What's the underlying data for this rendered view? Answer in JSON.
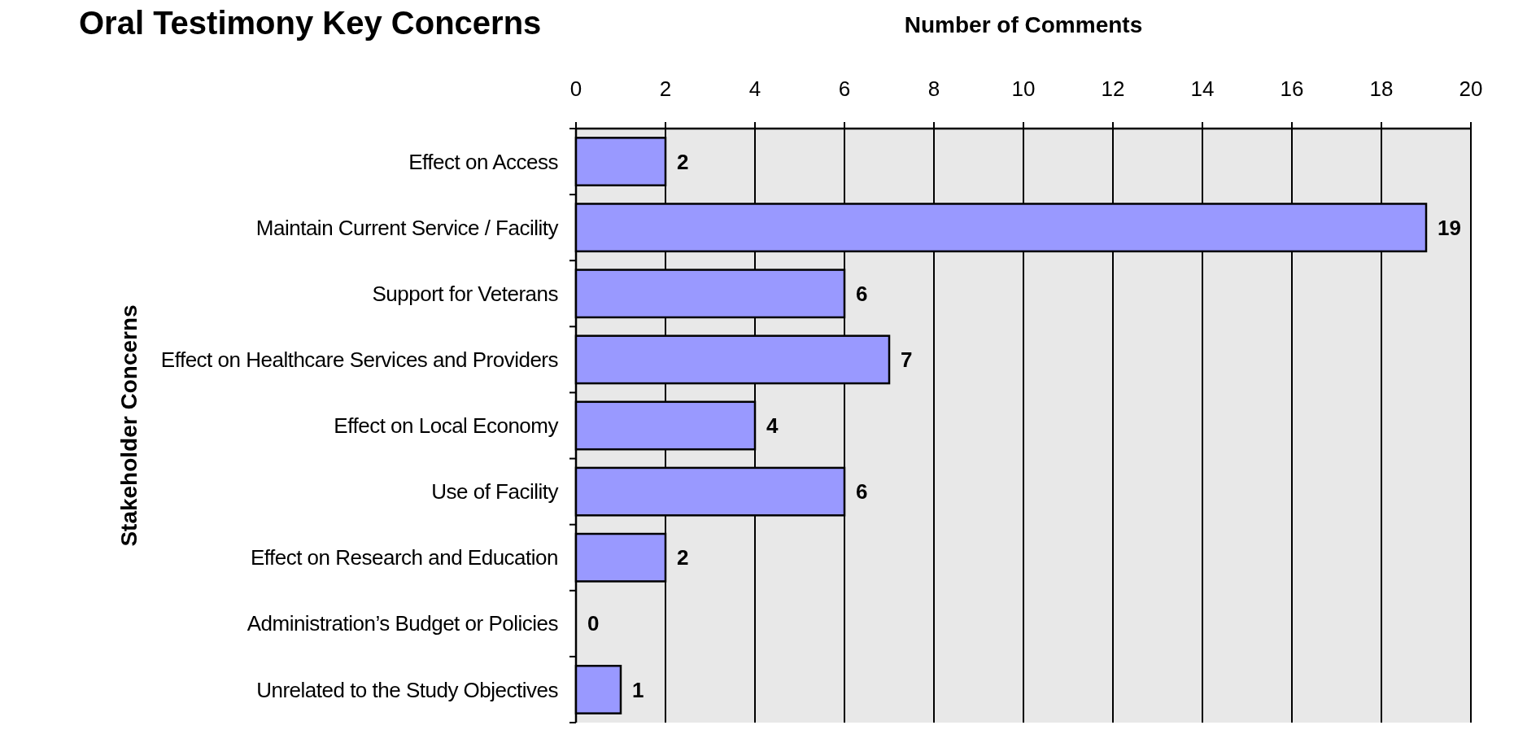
{
  "chart_data": {
    "type": "bar",
    "orientation": "horizontal",
    "title": "Oral Testimony Key Concerns",
    "xlabel": "Number of Comments",
    "ylabel": "Stakeholder Concerns",
    "categories": [
      "Effect on Access",
      "Maintain Current Service / Facility",
      "Support for Veterans",
      "Effect on Healthcare Services and Providers",
      "Effect on Local Economy",
      "Use of Facility",
      "Effect on Research and Education",
      "Administration’s Budget or Policies",
      "Unrelated to the Study Objectives"
    ],
    "values": [
      2,
      19,
      6,
      7,
      4,
      6,
      2,
      0,
      1
    ],
    "color": "#9999ff",
    "xlim": [
      0,
      20
    ],
    "xticks": [
      0,
      2,
      4,
      6,
      8,
      10,
      12,
      14,
      16,
      18,
      20
    ],
    "grid": "x",
    "data_labels": true
  }
}
